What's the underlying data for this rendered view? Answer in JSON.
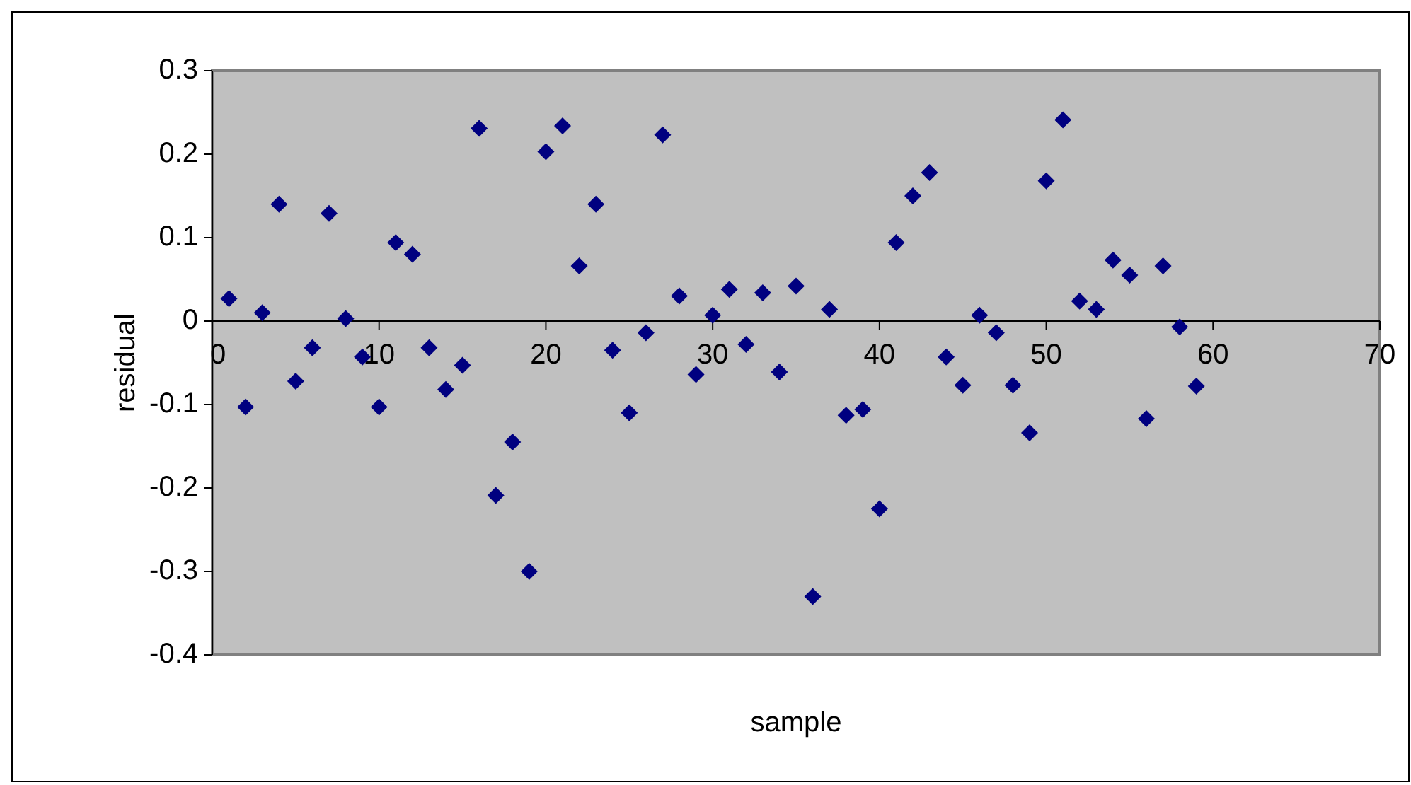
{
  "chart_data": {
    "type": "scatter",
    "xlabel": "sample",
    "ylabel": "residual",
    "xlim": [
      0,
      70
    ],
    "ylim": [
      -0.4,
      0.3
    ],
    "xticks": [
      0,
      10,
      20,
      30,
      40,
      50,
      60,
      70
    ],
    "yticks": [
      -0.4,
      -0.3,
      -0.2,
      -0.1,
      0,
      0.1,
      0.2,
      0.3
    ],
    "grid": false,
    "marker": "diamond",
    "series": [
      {
        "color": "#000080",
        "x": [
          1,
          2,
          3,
          4,
          5,
          6,
          7,
          8,
          9,
          10,
          11,
          12,
          13,
          14,
          15,
          16,
          17,
          18,
          19,
          20,
          21,
          22,
          23,
          24,
          25,
          26,
          27,
          28,
          29,
          30,
          31,
          32,
          33,
          34,
          35,
          36,
          37,
          38,
          39,
          40,
          41,
          42,
          43,
          44,
          45,
          46,
          47,
          48,
          49,
          50,
          51,
          52,
          53,
          54,
          55,
          56,
          57,
          58,
          59
        ],
        "values": [
          0.027,
          -0.103,
          0.01,
          0.14,
          -0.072,
          -0.032,
          0.129,
          0.003,
          -0.043,
          -0.103,
          0.094,
          0.08,
          -0.032,
          -0.082,
          -0.053,
          0.231,
          -0.209,
          -0.145,
          -0.3,
          0.203,
          0.234,
          0.066,
          0.14,
          -0.035,
          -0.11,
          -0.014,
          0.223,
          0.03,
          -0.064,
          0.007,
          0.038,
          -0.028,
          0.034,
          -0.061,
          0.042,
          -0.33,
          0.014,
          -0.113,
          -0.106,
          -0.225,
          0.094,
          0.15,
          0.178,
          -0.043,
          -0.077,
          0.007,
          -0.014,
          -0.077,
          -0.134,
          0.168,
          0.241,
          0.024,
          0.014,
          0.073,
          0.055,
          -0.117,
          0.066,
          -0.007,
          -0.078
        ]
      }
    ]
  }
}
